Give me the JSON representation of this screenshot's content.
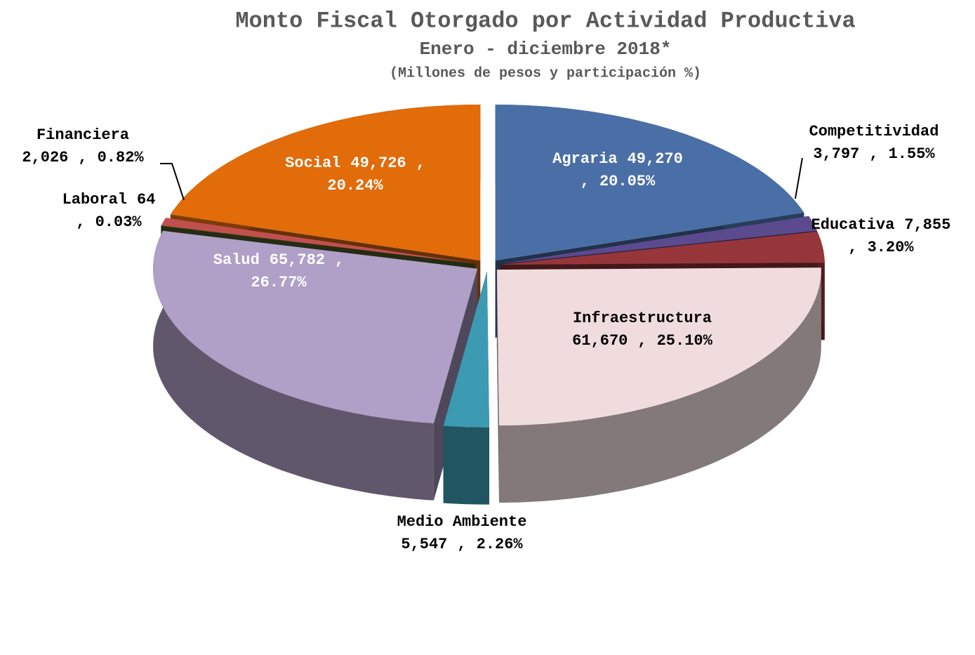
{
  "chart_data": {
    "type": "pie3d",
    "title": "Monto Fiscal Otorgado por Actividad Productiva",
    "subtitle": "Enero - diciembre 2018*",
    "note": "(Millones de pesos y participación %)",
    "label_separator": ",",
    "categories": [
      "Agraria",
      "Competitividad",
      "Educativa",
      "Infraestructura",
      "Medio Ambiente",
      "Salud",
      "Laboral",
      "Financiera",
      "Social"
    ],
    "values": [
      49270,
      3797,
      7855,
      61670,
      5547,
      65782,
      64,
      2026,
      49726
    ],
    "value_labels": [
      "49,270",
      "3,797",
      "7,855",
      "61,670",
      "5,547",
      "65,782",
      "64",
      "2,026",
      "49,726"
    ],
    "percents": [
      20.05,
      1.55,
      3.2,
      25.1,
      2.26,
      26.77,
      0.03,
      0.82,
      20.24
    ],
    "percent_labels": [
      "20.05%",
      "1.55%",
      "3.20%",
      "25.10%",
      "2.26%",
      "26.77%",
      "0.03%",
      "0.82%",
      "20.24%"
    ],
    "colors": [
      "#4a6fa6",
      "#5b4a8e",
      "#96363a",
      "#f0dcdc",
      "#3c9ab3",
      "#b09fc7",
      "#4f6228",
      "#c0504d",
      "#e26b0a"
    ]
  }
}
